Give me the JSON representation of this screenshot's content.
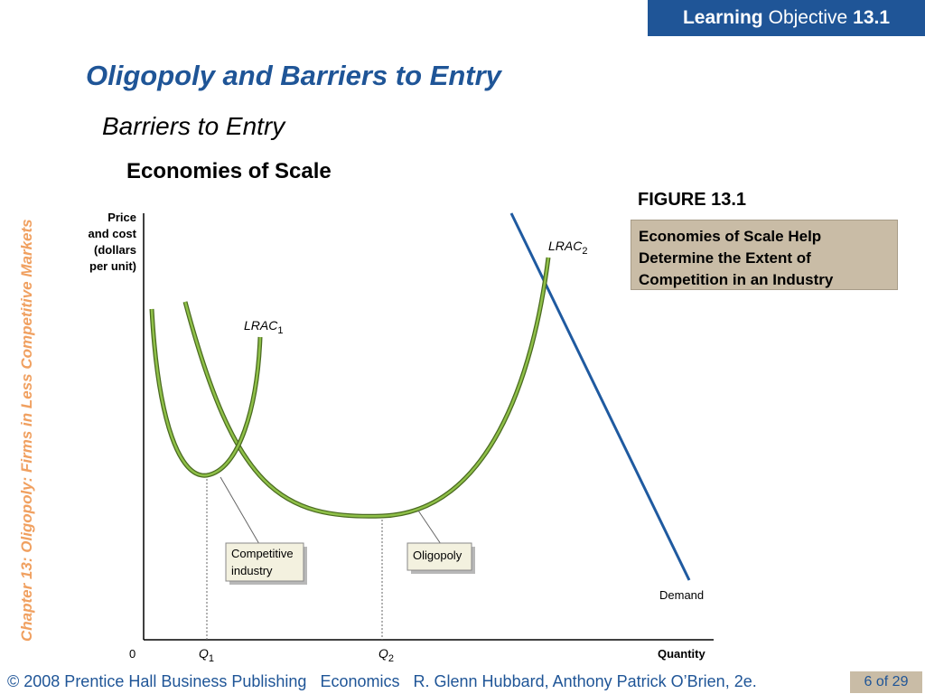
{
  "header": {
    "lo_word1": "Learning",
    "lo_word2": "Objective",
    "lo_number": "13.1"
  },
  "title": "Oligopoly and Barriers to Entry",
  "subtitle": "Barriers to Entry",
  "section": "Economies of Scale",
  "sidebar_text": "Chapter 13:  Oligopoly: Firms in Less Competitive Markets",
  "figure": {
    "label": "FIGURE 13.1",
    "caption": "Economies of Scale Help Determine the Extent of Competition in an Industry"
  },
  "diagram": {
    "y_axis_label_lines": [
      "Price",
      "and cost",
      "(dollars",
      "per unit)"
    ],
    "x_axis_label": "Quantity",
    "origin_label": "0",
    "q1": {
      "letter": "Q",
      "sub": "1"
    },
    "q2": {
      "letter": "Q",
      "sub": "2"
    },
    "lrac1": {
      "main": "LRAC",
      "sub": "1"
    },
    "lrac2": {
      "main": "LRAC",
      "sub": "2"
    },
    "demand_label": "Demand",
    "competitive_lines": [
      "Competitive",
      "industry"
    ],
    "oligopoly_label": "Oligopoly",
    "colors": {
      "lrac_curve": "#7aab3c",
      "lrac_outline": "#4a6a20",
      "demand_line": "#1f5aa0",
      "axis": "#000000"
    }
  },
  "footer": {
    "copyright": "© 2008 Prentice Hall Business Publishing",
    "book": "Economics",
    "authors": "R. Glenn Hubbard, Anthony Patrick O’Brien, 2e.",
    "page": "6 of 29"
  }
}
